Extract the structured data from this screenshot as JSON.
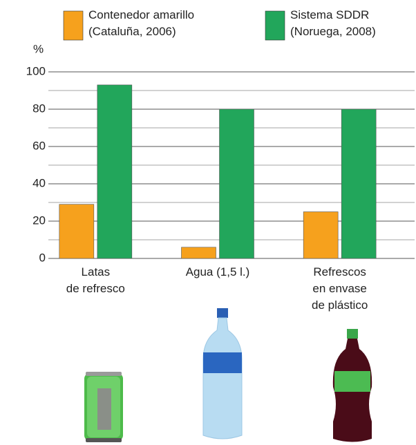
{
  "chart_data": {
    "type": "bar",
    "y_label": "%",
    "categories": [
      "Latas\nde refresco",
      "Agua (1,5 l.)",
      "Refrescos\nen envase\nde plástico"
    ],
    "series": [
      {
        "name": "Contenedor amarillo\n(Cataluña, 2006)",
        "color": "#f6a11d",
        "values": [
          29,
          6,
          25
        ]
      },
      {
        "name": "Sistema SDDR\n(Noruega, 2008)",
        "color": "#22a65b",
        "values": [
          93,
          80,
          80
        ]
      }
    ],
    "ylim": [
      0,
      100
    ],
    "yticks": [
      0,
      20,
      40,
      60,
      80,
      100
    ],
    "minor_yticks": [
      10,
      30,
      50,
      70,
      90
    ],
    "grid": true
  }
}
